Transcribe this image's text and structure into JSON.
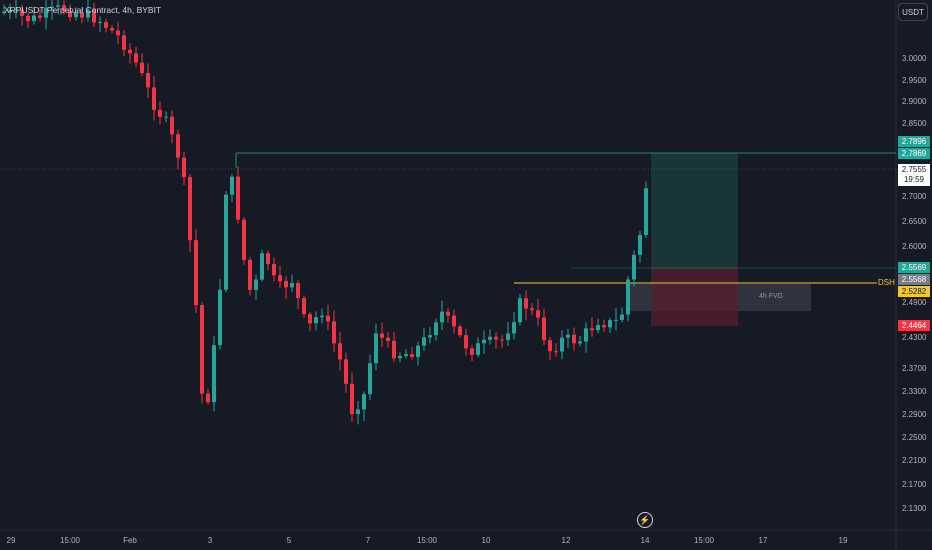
{
  "header": {
    "symbol": "XRPUSDT Perpetual Contract, 4h, BYBIT",
    "quote_currency": "USDT"
  },
  "price_axis": {
    "ticks": [
      "3.0000",
      "2.9500",
      "2.9000",
      "2.8500",
      "2.7000",
      "2.6500",
      "2.6000",
      "2.4900",
      "2.4300",
      "2.3700",
      "2.3300",
      "2.2900",
      "2.2500",
      "2.2100",
      "2.1700",
      "2.1300"
    ]
  },
  "price_tags": {
    "take_profit": "2.7896",
    "high": "2.7869",
    "current_price": "2.7555",
    "countdown": "19:59",
    "entry": "2.5569",
    "level_2": "2.5568",
    "dsh_price": "2.5282",
    "stop_loss": "2.4464"
  },
  "annotations": {
    "dsh_label": "DSH",
    "fvg_label": "4h FVG"
  },
  "time_axis": {
    "labels": [
      "29",
      "15:00",
      "Feb",
      "3",
      "5",
      "7",
      "15:00",
      "10",
      "12",
      "14",
      "15:00",
      "17",
      "19"
    ]
  },
  "colors": {
    "up": "#26a69a",
    "down": "#f23645",
    "background": "#161a25",
    "dsh_line": "#f0c93a"
  },
  "icons": {
    "timeframe_alert": "lightning-bolt-icon"
  }
}
